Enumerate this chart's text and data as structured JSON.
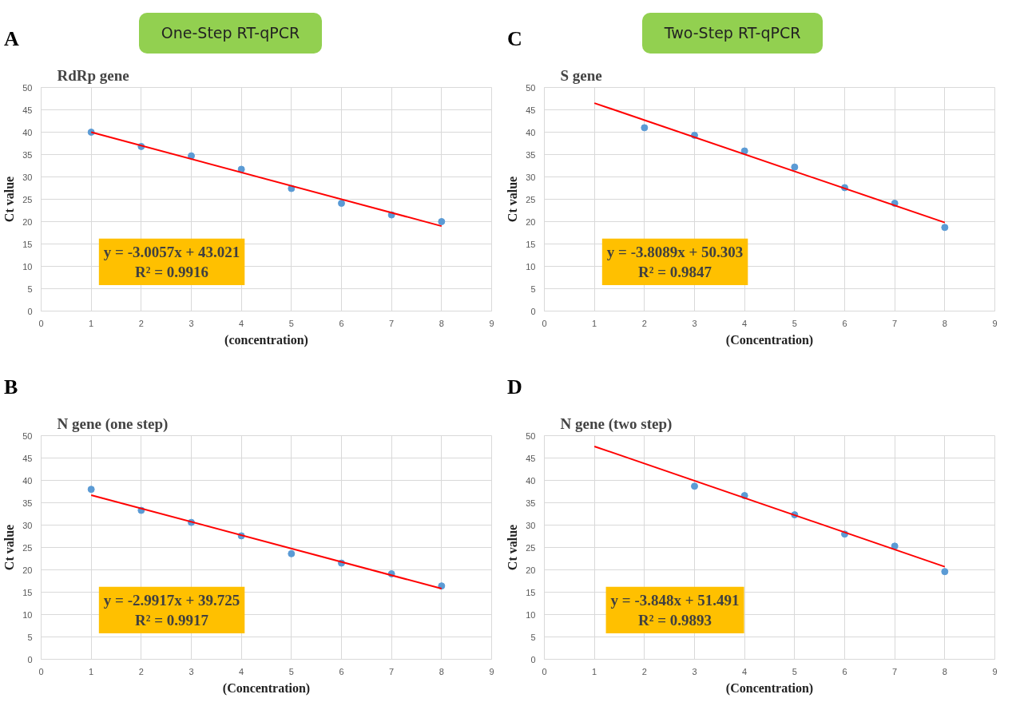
{
  "chart_data": [
    {
      "type": "scatter",
      "title": "RdRp gene",
      "xlabel": "(concentration)",
      "ylabel": "Ct value",
      "annotations": [
        "A",
        "y = -3.0057x + 43.021",
        "R² = 0.9916",
        "One-Step RT-qPCR"
      ],
      "xlim": [
        0,
        9
      ],
      "xticks": [
        0,
        1,
        2,
        3,
        4,
        5,
        6,
        7,
        8,
        9
      ],
      "ylim": [
        0,
        50
      ],
      "yticks": [
        0,
        5,
        10,
        15,
        20,
        25,
        30,
        35,
        40,
        45,
        50
      ],
      "grid": true,
      "series": [
        {
          "marker": "circle",
          "color": "#5b9bd5",
          "x": [
            1,
            2,
            3,
            4,
            5,
            6,
            7,
            8
          ],
          "values": [
            40.0,
            36.8,
            34.7,
            31.7,
            27.4,
            24.1,
            21.5,
            20.0
          ]
        },
        {
          "type": "line",
          "color": "#ff0000",
          "x": [
            1,
            8
          ],
          "values": [
            40.0,
            19.0
          ]
        }
      ]
    },
    {
      "type": "scatter",
      "title": "S gene",
      "xlabel": "(Concentration)",
      "ylabel": "Ct value",
      "annotations": [
        "C",
        "y = -3.8089x + 50.303",
        "R² = 0.9847",
        "Two-Step RT-qPCR"
      ],
      "xlim": [
        0,
        9
      ],
      "xticks": [
        0,
        1,
        2,
        3,
        4,
        5,
        6,
        7,
        8,
        9
      ],
      "ylim": [
        0,
        50
      ],
      "yticks": [
        0,
        5,
        10,
        15,
        20,
        25,
        30,
        35,
        40,
        45,
        50
      ],
      "grid": true,
      "series": [
        {
          "marker": "circle",
          "color": "#5b9bd5",
          "x": [
            2,
            3,
            4,
            5,
            6,
            7,
            8
          ],
          "values": [
            41.0,
            39.3,
            35.8,
            32.2,
            27.6,
            24.1,
            18.7
          ]
        },
        {
          "type": "line",
          "color": "#ff0000",
          "x": [
            1,
            8
          ],
          "values": [
            46.5,
            19.8
          ]
        }
      ]
    },
    {
      "type": "scatter",
      "title": "N gene (one step)",
      "xlabel": "(Concentration)",
      "ylabel": "Ct value",
      "annotations": [
        "B",
        "y = -2.9917x + 39.725",
        "R² = 0.9917"
      ],
      "xlim": [
        0,
        9
      ],
      "xticks": [
        0,
        1,
        2,
        3,
        4,
        5,
        6,
        7,
        8,
        9
      ],
      "ylim": [
        0,
        50
      ],
      "yticks": [
        0,
        5,
        10,
        15,
        20,
        25,
        30,
        35,
        40,
        45,
        50
      ],
      "grid": true,
      "series": [
        {
          "marker": "circle",
          "color": "#5b9bd5",
          "x": [
            1,
            2,
            3,
            4,
            5,
            6,
            7,
            8
          ],
          "values": [
            38.0,
            33.3,
            30.6,
            27.6,
            23.6,
            21.5,
            19.1,
            16.4
          ]
        },
        {
          "type": "line",
          "color": "#ff0000",
          "x": [
            1,
            8
          ],
          "values": [
            36.7,
            15.8
          ]
        }
      ]
    },
    {
      "type": "scatter",
      "title": "N gene (two step)",
      "xlabel": "(Concentration)",
      "ylabel": "Ct value",
      "annotations": [
        "D",
        "y = -3.848x + 51.491",
        "R² = 0.9893"
      ],
      "xlim": [
        0,
        9
      ],
      "xticks": [
        0,
        1,
        2,
        3,
        4,
        5,
        6,
        7,
        8,
        9
      ],
      "ylim": [
        0,
        50
      ],
      "yticks": [
        0,
        5,
        10,
        15,
        20,
        25,
        30,
        35,
        40,
        45,
        50
      ],
      "grid": true,
      "series": [
        {
          "marker": "circle",
          "color": "#5b9bd5",
          "x": [
            3,
            4,
            5,
            6,
            7,
            8
          ],
          "values": [
            38.7,
            36.6,
            32.3,
            28.0,
            25.3,
            19.6
          ]
        },
        {
          "type": "line",
          "color": "#ff0000",
          "x": [
            1,
            8
          ],
          "values": [
            47.6,
            20.7
          ]
        }
      ]
    }
  ]
}
